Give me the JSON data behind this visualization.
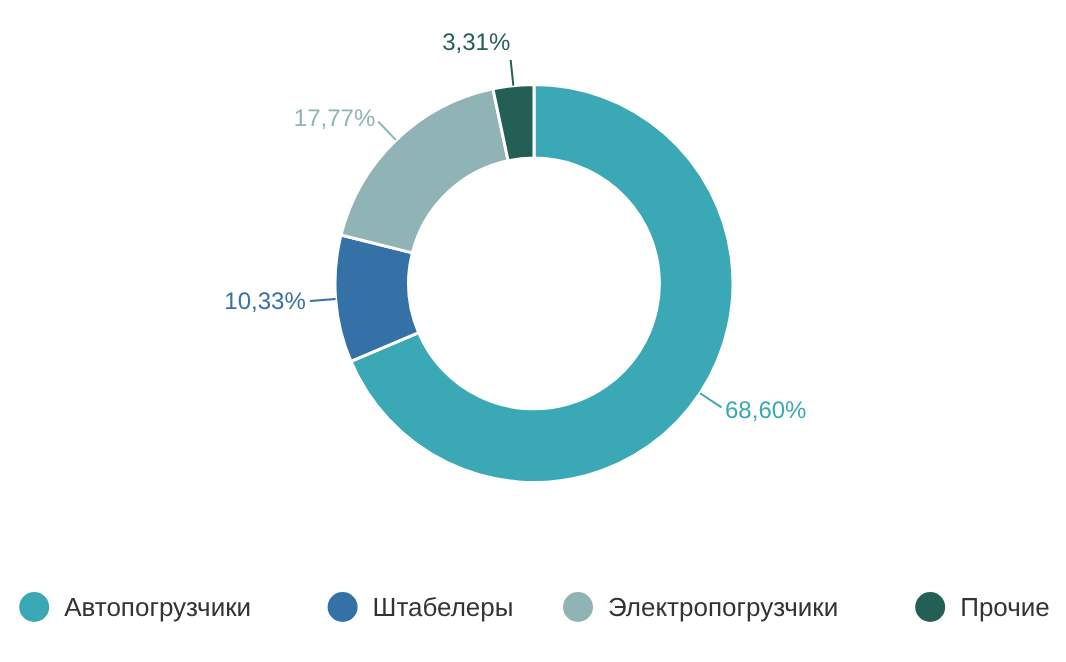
{
  "chart_data": {
    "type": "donut",
    "categories": [
      "Автопогрузчики",
      "Штабелеры",
      "Электропогрузчики",
      "Прочие"
    ],
    "values": [
      68.6,
      10.33,
      17.77,
      3.31
    ],
    "value_labels": [
      "68,60%",
      "10,33%",
      "17,77%",
      "3,31%"
    ],
    "colors": [
      "#3aa8b5",
      "#3471a6",
      "#90b3b5",
      "#235f55"
    ],
    "legend": "bottom"
  }
}
